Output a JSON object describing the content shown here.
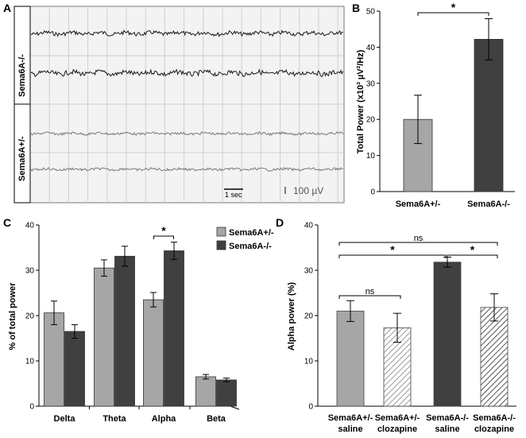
{
  "panel_a": {
    "letter": "A",
    "row_labels": [
      "Sema6A-/-",
      "Sema6A+/-"
    ],
    "time_scale_label": "1 sec",
    "amp_scale_label": "100 µV"
  },
  "chart_data": [
    {
      "id": "B",
      "type": "bar",
      "letter": "B",
      "categories": [
        "Sema6A+/-",
        "Sema6A-/-"
      ],
      "values": [
        20.0,
        42.2
      ],
      "errors": [
        6.7,
        5.7
      ],
      "colors": [
        "#a6a6a6",
        "#404040"
      ],
      "ylabel": "Total Power (x10³ µV²/Hz)",
      "ylim": [
        0,
        50
      ],
      "yticks": [
        0,
        10,
        20,
        30,
        40,
        50
      ],
      "annotations": [
        {
          "text": "*",
          "from": 0,
          "to": 1
        }
      ]
    },
    {
      "id": "C",
      "type": "bar",
      "letter": "C",
      "categories": [
        "Delta",
        "Theta",
        "Alpha",
        "Beta"
      ],
      "series": [
        {
          "name": "Sema6A+/-",
          "values": [
            20.6,
            30.5,
            23.5,
            6.5
          ],
          "errors": [
            2.6,
            1.8,
            1.6,
            0.5
          ],
          "color": "#a6a6a6"
        },
        {
          "name": "Sema6A-/-",
          "values": [
            16.5,
            33.1,
            34.3,
            5.8
          ],
          "errors": [
            1.5,
            2.2,
            1.9,
            0.4
          ],
          "color": "#404040"
        }
      ],
      "ylabel": "% of total power",
      "ylim": [
        0,
        40
      ],
      "yticks": [
        0,
        10,
        20,
        30,
        40
      ],
      "legend": "top-right",
      "annotations": [
        {
          "text": "*",
          "category": 2
        }
      ]
    },
    {
      "id": "D",
      "type": "bar",
      "letter": "D",
      "categories": [
        [
          "Sema6A+/-",
          "saline"
        ],
        [
          "Sema6A+/-",
          "clozapine"
        ],
        [
          "Sema6A-/-",
          "saline"
        ],
        [
          "Sema6A-/-",
          "clozapine"
        ]
      ],
      "values": [
        21.0,
        17.3,
        31.8,
        21.8
      ],
      "errors": [
        2.3,
        3.2,
        1.1,
        3.0
      ],
      "fills": [
        "solid-light",
        "hatch-light",
        "solid-dark",
        "hatch-dark"
      ],
      "ylabel": "Alpha power (%)",
      "ylim": [
        0,
        40
      ],
      "yticks": [
        0,
        10,
        20,
        30,
        40
      ],
      "annotations": [
        {
          "text": "ns",
          "from": 0,
          "to": 3
        },
        {
          "text": "*",
          "from": 0,
          "to": 2
        },
        {
          "text": "*",
          "from": 2,
          "to": 3
        },
        {
          "text": "ns",
          "from": 0,
          "to": 1
        }
      ]
    }
  ]
}
